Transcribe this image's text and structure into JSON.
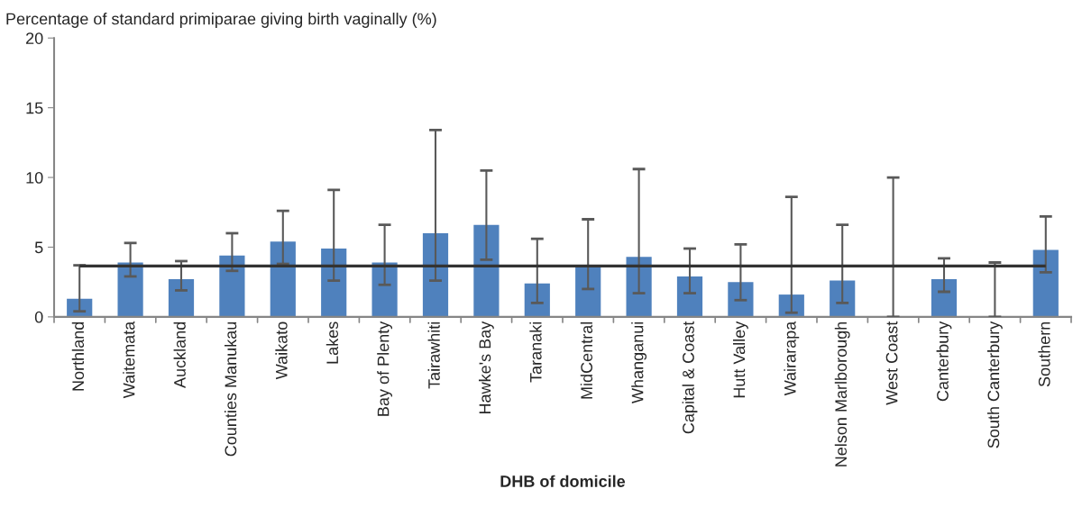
{
  "chart_data": {
    "type": "bar",
    "ylabel": "Percentage of standard primiparae giving birth vaginally (%)",
    "xlabel": "DHB of domicile",
    "categories": [
      "Northland",
      "Waitemata",
      "Auckland",
      "Counties Manukau",
      "Waikato",
      "Lakes",
      "Bay of Plenty",
      "Tairawhiti",
      "Hawke's Bay",
      "Taranaki",
      "MidCentral",
      "Whanganui",
      "Capital & Coast",
      "Hutt Valley",
      "Wairarapa",
      "Nelson Marlborough",
      "West Coast",
      "Canterbury",
      "South Canterbury",
      "Southern"
    ],
    "values": [
      1.3,
      3.9,
      2.7,
      4.4,
      5.4,
      4.9,
      3.9,
      6.0,
      6.6,
      2.4,
      3.7,
      4.3,
      2.9,
      2.5,
      1.6,
      2.6,
      0,
      2.7,
      0,
      4.8
    ],
    "errors": [
      [
        0.4,
        3.7
      ],
      [
        2.9,
        5.3
      ],
      [
        1.9,
        4.0
      ],
      [
        3.3,
        6.0
      ],
      [
        3.8,
        7.6
      ],
      [
        2.6,
        9.1
      ],
      [
        2.3,
        6.6
      ],
      [
        2.6,
        13.4
      ],
      [
        4.1,
        10.5
      ],
      [
        1.0,
        5.6
      ],
      [
        2.0,
        7.0
      ],
      [
        1.7,
        10.6
      ],
      [
        1.7,
        4.9
      ],
      [
        1.2,
        5.2
      ],
      [
        0.3,
        8.6
      ],
      [
        1.0,
        6.6
      ],
      [
        0,
        10.0
      ],
      [
        1.8,
        4.2
      ],
      [
        0,
        3.9
      ],
      [
        3.2,
        7.2
      ]
    ],
    "color": "#4f81bd",
    "ref_lines": [
      {
        "axis": "y",
        "value": 3.65,
        "color": "#333333"
      }
    ],
    "ylim": [
      0,
      20
    ],
    "yticks": [
      0,
      5,
      10,
      15,
      20
    ],
    "grid": false,
    "legend": false
  }
}
